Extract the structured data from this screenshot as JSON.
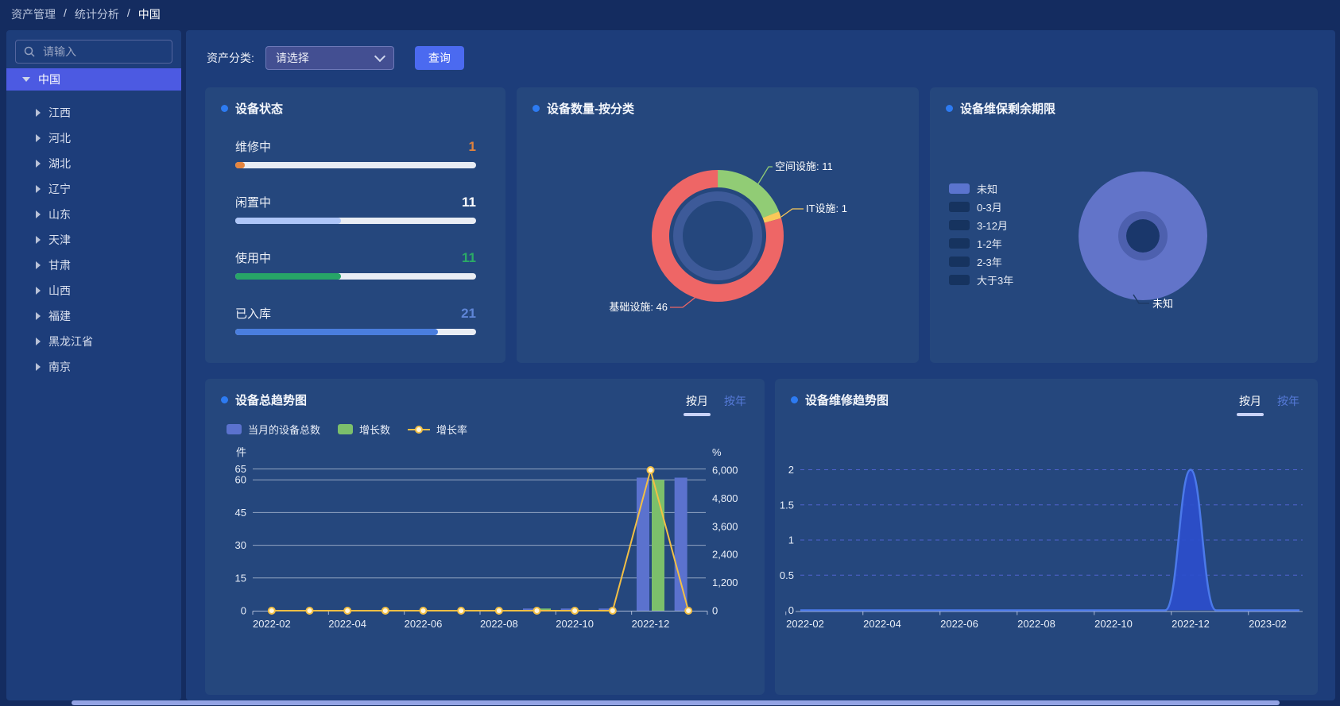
{
  "breadcrumb": {
    "items": [
      "资产管理",
      "统计分析",
      "中国"
    ],
    "separator": "/"
  },
  "sidebar": {
    "search_placeholder": "请输入",
    "selected": "中国",
    "items": [
      "江西",
      "河北",
      "湖北",
      "辽宁",
      "山东",
      "天津",
      "甘肃",
      "山西",
      "福建",
      "黑龙江省",
      "南京"
    ]
  },
  "filter": {
    "label": "资产分类:",
    "selected_option": "请选择",
    "query_button": "查询"
  },
  "cards": {
    "device_status": {
      "title": "设备状态"
    },
    "device_count": {
      "title": "设备数量-按分类"
    },
    "warranty": {
      "title": "设备维保剩余期限"
    },
    "total_trend": {
      "title": "设备总趋势图",
      "tabs": {
        "month": "按月",
        "year": "按年"
      }
    },
    "repair_trend": {
      "title": "设备维修趋势图",
      "tabs": {
        "month": "按月",
        "year": "按年"
      }
    }
  },
  "colors": {
    "accent_dot": "#2d7bf2",
    "query_button": "#4b6af0",
    "selected_nav": "#4c5ae2",
    "tab_underline": "#c9d3f8",
    "card_bg": "#25477d",
    "panel_bg": "#1d3d7a"
  },
  "chart_data": [
    {
      "id": "device_status",
      "type": "bar",
      "title": "设备状态",
      "categories": [
        "维修中",
        "闲置中",
        "使用中",
        "已入库"
      ],
      "values": [
        1,
        11,
        11,
        21
      ],
      "value_colors": [
        "#e0823d",
        "#ffffff",
        "#2bab66",
        "#5f86d8"
      ],
      "bar_colors": [
        "#e5853f",
        "#aec6f8",
        "#27a567",
        "#4a7ede"
      ],
      "track_color": "#e9edf4",
      "scale_max": 25
    },
    {
      "id": "device_count",
      "type": "pie",
      "title": "设备数量-按分类",
      "labels": [
        "空间设施",
        "IT设施",
        "基础设施"
      ],
      "values": [
        11,
        1,
        46
      ],
      "colors": [
        "#91cc75",
        "#fac858",
        "#ee6666"
      ],
      "inner_ring_color": "#3d5a99",
      "label_format": "{name}: {value}"
    },
    {
      "id": "warranty",
      "type": "pie",
      "title": "设备维保剩余期限",
      "labels": [
        "未知",
        "0-3月",
        "3-12月",
        "1-2年",
        "2-3年",
        "大于3年"
      ],
      "visible_label": "未知",
      "active_index": 0,
      "colors": [
        "#6274c9",
        "#16335f",
        "#16335f",
        "#16335f",
        "#16335f",
        "#16335f"
      ]
    },
    {
      "id": "total_trend",
      "type": "bar",
      "title": "设备总趋势图",
      "categories": [
        "2022-02",
        "2022-03",
        "2022-04",
        "2022-05",
        "2022-06",
        "2022-07",
        "2022-08",
        "2022-09",
        "2022-10",
        "2022-11",
        "2022-12",
        "2023-01"
      ],
      "series": [
        {
          "name": "当月的设备总数",
          "type": "bar",
          "axis": "left",
          "color": "#5b72ce",
          "values": [
            0,
            0,
            0,
            0,
            0,
            0,
            0,
            1,
            1,
            1,
            61,
            61
          ]
        },
        {
          "name": "增长数",
          "type": "bar",
          "axis": "left",
          "color": "#7cbf6b",
          "values": [
            0,
            0,
            0,
            0,
            0,
            0,
            0,
            1,
            0,
            0,
            60,
            0
          ]
        },
        {
          "name": "增长率",
          "type": "line",
          "axis": "right",
          "color": "#f2bf45",
          "values": [
            0,
            0,
            0,
            0,
            0,
            0,
            0,
            0,
            0,
            0,
            6000,
            0
          ]
        }
      ],
      "left_axis": {
        "name": "件",
        "ticks": [
          0,
          15,
          30,
          45,
          60,
          65
        ],
        "max": 65
      },
      "right_axis": {
        "name": "%",
        "ticks": [
          "0",
          "1,200",
          "2,400",
          "3,600",
          "4,800",
          "6,000"
        ],
        "tick_values": [
          0,
          1200,
          2400,
          3600,
          4800,
          6000
        ],
        "max": 6000
      },
      "x_label_every": 2,
      "grid": true,
      "legend_position": "top-left"
    },
    {
      "id": "repair_trend",
      "type": "area",
      "title": "设备维修趋势图",
      "categories": [
        "2022-02",
        "2022-03",
        "2022-04",
        "2022-05",
        "2022-06",
        "2022-07",
        "2022-08",
        "2022-09",
        "2022-10",
        "2022-11",
        "2022-12",
        "2023-01",
        "2023-02"
      ],
      "values": [
        0,
        0,
        0,
        0,
        0,
        0,
        0,
        0,
        0,
        0,
        2,
        0,
        0
      ],
      "line_color": "#4b79ea",
      "fill_color": "#2b4ecc",
      "grid_color": "#5063cf",
      "grid_style": "dashed",
      "y_ticks": [
        0,
        0.5,
        1,
        1.5,
        2
      ],
      "y_max": 2,
      "x_label_every": 2
    }
  ]
}
